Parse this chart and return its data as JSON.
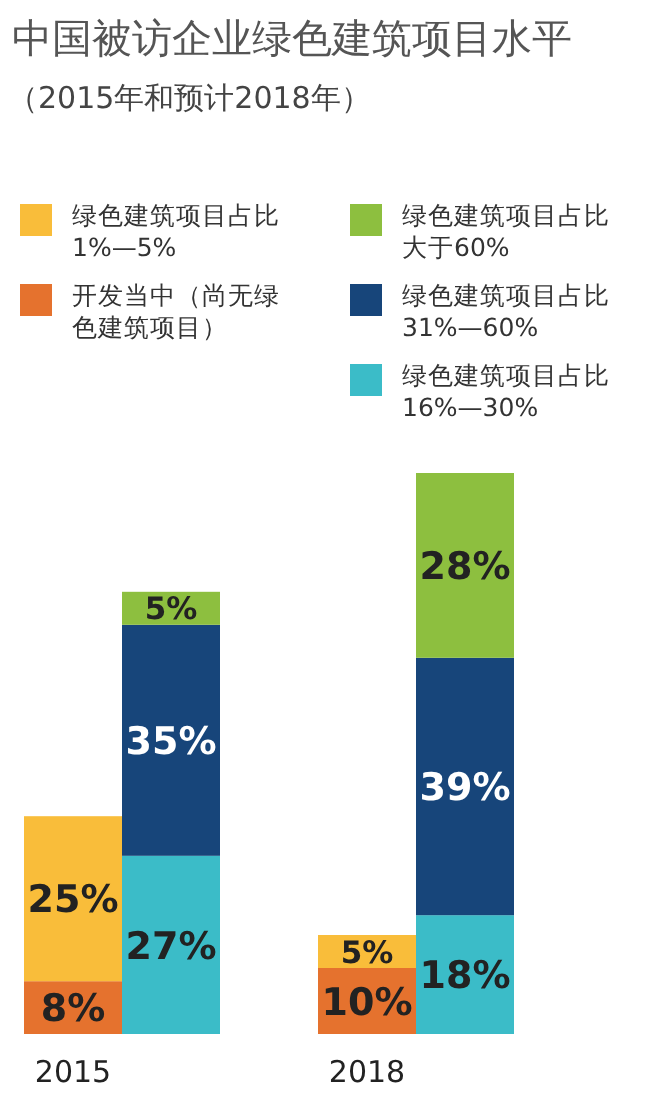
{
  "chart_data": {
    "type": "bar",
    "stacked": true,
    "title": "中国被访企业绿色建筑项目水平",
    "subtitle": "（2015年和预计2018年）",
    "legend": "top",
    "categories": [
      "2015",
      null,
      null,
      "2018",
      null
    ],
    "series": [
      {
        "name": "开发当中（尚无绿色建筑项目）",
        "color": "#e5722e",
        "values": [
          8,
          null,
          null,
          10,
          null
        ],
        "value_labels": [
          "8%",
          null,
          null,
          "10%",
          null
        ]
      },
      {
        "name": "绿色建筑项目占比1%—5%",
        "color": "#f9bd3a",
        "values": [
          25,
          null,
          null,
          5,
          null
        ],
        "value_labels": [
          "25%",
          null,
          null,
          "5%",
          null
        ]
      },
      {
        "name": "绿色建筑项目占比16%—30%",
        "color": "#3bbcc8",
        "values": [
          null,
          27,
          null,
          null,
          18
        ],
        "value_labels": [
          null,
          "27%",
          null,
          null,
          "18%"
        ]
      },
      {
        "name": "绿色建筑项目占比31%—60%",
        "color": "#17457a",
        "values": [
          null,
          35,
          null,
          null,
          39
        ],
        "value_labels": [
          null,
          "35%",
          null,
          null,
          "39%"
        ]
      },
      {
        "name": "绿色建筑项目占比大于60%",
        "color": "#8dbf3f",
        "values": [
          null,
          5,
          null,
          null,
          28
        ],
        "value_labels": [
          null,
          "5%",
          null,
          null,
          "28%"
        ]
      }
    ]
  }
}
